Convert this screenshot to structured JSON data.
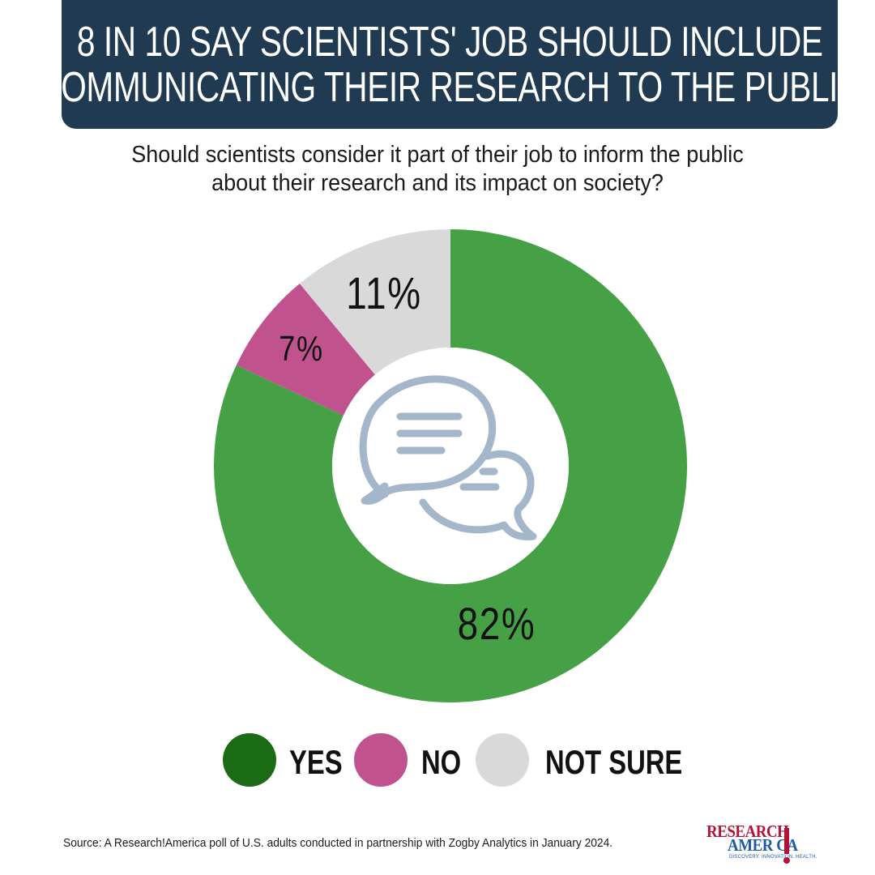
{
  "header": {
    "title_line1": "8 IN 10 SAY SCIENTISTS' JOB SHOULD INCLUDE",
    "title_line2": "COMMUNICATING THEIR RESEARCH TO THE PUBLIC"
  },
  "question": {
    "line1": "Should scientists consider it part of their job to inform the public",
    "line2": "about their research and its impact on society?"
  },
  "chart_data": {
    "type": "pie",
    "variant": "donut",
    "categories": [
      "YES",
      "NO",
      "NOT SURE"
    ],
    "values": [
      82,
      7,
      11
    ],
    "labels": [
      "82%",
      "7%",
      "11%"
    ],
    "colors": [
      "#45a046",
      "#c0538d",
      "#d9d9d9"
    ],
    "legend_colors": [
      "#1a6b14",
      "#c0538d",
      "#d9d9d9"
    ],
    "legend_position": "bottom",
    "center_icon": "chat-bubbles-icon",
    "center_icon_color": "#a4b6c9"
  },
  "source": "Source:  A Research!America poll of U.S. adults conducted in partnership with Zogby Analytics in January 2024.",
  "logo": {
    "line1": "RESEARCH",
    "line2": "AMER CA",
    "tagline": "DISCOVERY. INNOVATION. HEALTH."
  }
}
